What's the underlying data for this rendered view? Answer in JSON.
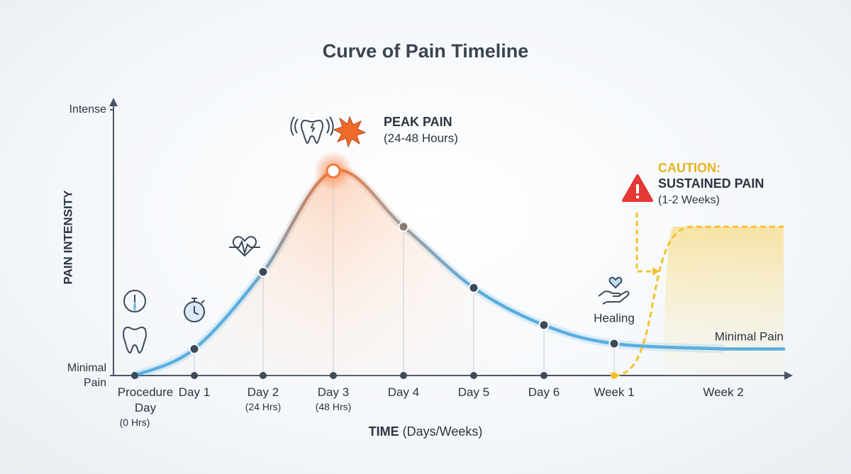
{
  "chart_data": {
    "type": "line",
    "title": "Curve of Pain Timeline",
    "y_label": "PAIN INTENSITY",
    "x_label": "TIME",
    "x_label_note": "(Days/Weeks)",
    "categories": [
      "Procedure Day",
      "Day 1",
      "Day 2",
      "Day 3",
      "Day 4",
      "Day 5",
      "Day 6",
      "Week 1",
      "Week 2"
    ],
    "category_notes": [
      "(0 Hrs)",
      null,
      "(24 Hrs)",
      "(48 Hrs)",
      null,
      null,
      null,
      null,
      null
    ],
    "series": [
      {
        "color": "#5aaee0",
        "peak_color": "#f07a3c",
        "values": [
          0,
          10,
          39,
          77,
          56,
          33,
          19,
          12,
          10
        ]
      },
      {
        "color": "#f2c230",
        "values": [
          null,
          null,
          null,
          null,
          null,
          null,
          null,
          0,
          56
        ]
      }
    ],
    "ylim": [
      0,
      100
    ],
    "yticks": [
      {
        "value": 0,
        "label": "Minimal Pain"
      },
      {
        "value": 100,
        "label": "Intense"
      }
    ],
    "annotations": {
      "peak_title": "PEAK PAIN",
      "peak_note": "(24-48 Hours)",
      "caution_title": "CAUTION:",
      "caution_subtitle": "SUSTAINED PAIN",
      "caution_note": "(1-2 Weeks)",
      "healing": "Healing",
      "end_label": "Minimal Pain"
    }
  }
}
